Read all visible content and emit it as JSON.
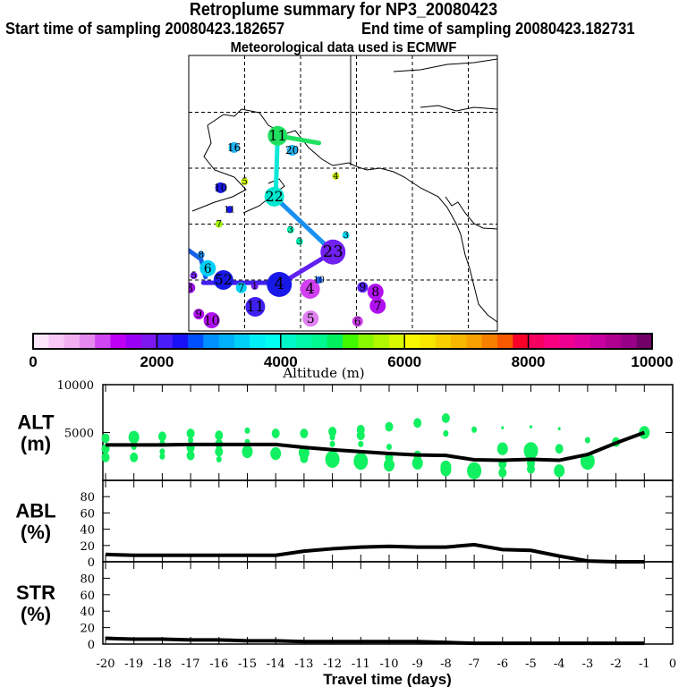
{
  "header": {
    "title": "Retroplume summary for NP3_20080423",
    "start": "Start time of sampling 20080423.182657",
    "end": "End time of sampling 20080423.182731",
    "met": "Meteorological data used is ECMWF"
  },
  "map": {
    "lon_range": [
      -170,
      -115
    ],
    "lat_range": [
      31,
      80
    ],
    "grid_lons": [
      -160,
      -150,
      -140,
      -130,
      -120
    ],
    "grid_lats": [
      70,
      60,
      50,
      40
    ],
    "tracks": [
      {
        "color": "#20e060",
        "pts": [
          [
            -154.1,
            65.8
          ],
          [
            -146.7,
            64.5
          ]
        ]
      },
      {
        "color": "#10e8d8",
        "pts": [
          [
            -154.1,
            65.8
          ],
          [
            -154.4,
            56.5
          ],
          [
            -154.7,
            54.9
          ]
        ]
      },
      {
        "color": "#1890f0",
        "pts": [
          [
            -154.7,
            54.9
          ],
          [
            -144.2,
            45.0
          ]
        ]
      },
      {
        "color": "#6020f0",
        "pts": [
          [
            -144.2,
            45.0
          ],
          [
            -153.8,
            39.2
          ]
        ]
      },
      {
        "color": "#4020f0",
        "pts": [
          [
            -153.8,
            39.5
          ],
          [
            -167.4,
            39.5
          ]
        ]
      },
      {
        "color": "#1860e8",
        "pts": [
          [
            -170,
            45.3
          ],
          [
            -167.8,
            43.7
          ],
          [
            -167,
            40.5
          ]
        ]
      }
    ],
    "points": [
      {
        "label": "11",
        "lon": -154.1,
        "lat": 65.8,
        "color": "#20e060",
        "size": 4
      },
      {
        "label": "20",
        "lon": -151.5,
        "lat": 63.2,
        "color": "#20b0f0",
        "size": 2
      },
      {
        "label": "16",
        "lon": -161.9,
        "lat": 63.7,
        "color": "#20b0f0",
        "size": 2
      },
      {
        "label": "4",
        "lon": -143.7,
        "lat": 58.6,
        "color": "#c8f000",
        "size": 1
      },
      {
        "label": "5",
        "lon": -160.0,
        "lat": 57.6,
        "color": "#c8f000",
        "size": 1
      },
      {
        "label": "10",
        "lon": -164.3,
        "lat": 56.5,
        "color": "#1818e8",
        "size": 2
      },
      {
        "label": "11",
        "lon": -162.7,
        "lat": 52.6,
        "color": "#1818e8",
        "size": 1
      },
      {
        "label": "7",
        "lon": -164.6,
        "lat": 50.0,
        "color": "#a0f000",
        "size": 1
      },
      {
        "label": "22",
        "lon": -154.7,
        "lat": 54.9,
        "color": "#00e8d0",
        "size": 4
      },
      {
        "label": "3",
        "lon": -151.8,
        "lat": 49.0,
        "color": "#00f0b0",
        "size": 1
      },
      {
        "label": "3",
        "lon": -150.2,
        "lat": 46.9,
        "color": "#00f0b0",
        "size": 1
      },
      {
        "label": "3",
        "lon": -141.9,
        "lat": 48.0,
        "color": "#00d8f0",
        "size": 1
      },
      {
        "label": "23",
        "lon": -144.2,
        "lat": 45.0,
        "color": "#7020f0",
        "size": 5
      },
      {
        "label": "8",
        "lon": -167.8,
        "lat": 44.5,
        "color": "#1890f0",
        "size": 1
      },
      {
        "label": "6",
        "lon": -166.6,
        "lat": 42.1,
        "color": "#00d0f8",
        "size": 3
      },
      {
        "label": "5",
        "lon": -169.1,
        "lat": 40.8,
        "color": "#7020f0",
        "size": 1
      },
      {
        "label": "52",
        "lon": -163.8,
        "lat": 40.0,
        "color": "#1818e8",
        "size": 4
      },
      {
        "label": "3",
        "lon": -169.8,
        "lat": 38.6,
        "color": "#a010f0",
        "size": 2
      },
      {
        "label": "7",
        "lon": -160.6,
        "lat": 38.6,
        "color": "#00d0f8",
        "size": 2
      },
      {
        "label": "1",
        "lon": -158.2,
        "lat": 38.9,
        "color": "#7020f0",
        "size": 1
      },
      {
        "label": "4",
        "lon": -153.8,
        "lat": 39.2,
        "color": "#1818e8",
        "size": 5
      },
      {
        "label": "4",
        "lon": -148.3,
        "lat": 38.4,
        "color": "#d040f0",
        "size": 4
      },
      {
        "label": "10",
        "lon": -146.7,
        "lat": 40.0,
        "color": "#1860f0",
        "size": 1
      },
      {
        "label": "9",
        "lon": -138.9,
        "lat": 38.7,
        "color": "#5020f0",
        "size": 2
      },
      {
        "label": "8",
        "lon": -136.6,
        "lat": 37.9,
        "color": "#b010f0",
        "size": 3
      },
      {
        "label": "7",
        "lon": -136.2,
        "lat": 35.4,
        "color": "#b010f0",
        "size": 3
      },
      {
        "label": "11",
        "lon": -158.1,
        "lat": 35.2,
        "color": "#4020f0",
        "size": 4
      },
      {
        "label": "9",
        "lon": -168.2,
        "lat": 33.9,
        "color": "#b010f0",
        "size": 2
      },
      {
        "label": "10",
        "lon": -165.9,
        "lat": 32.8,
        "color": "#b010f0",
        "size": 3
      },
      {
        "label": "5",
        "lon": -148.2,
        "lat": 33.1,
        "color": "#e080f0",
        "size": 3
      },
      {
        "label": "6",
        "lon": -139.8,
        "lat": 32.6,
        "color": "#d040f0",
        "size": 2
      }
    ]
  },
  "colorbar": {
    "label": "Altitude (m)",
    "ticks": [
      "0",
      "2000",
      "4000",
      "6000",
      "8000",
      "10000"
    ],
    "colors": [
      "#fde6fb",
      "#f9c8f7",
      "#f1aef0",
      "#e589ee",
      "#d146f3",
      "#bd00f5",
      "#9a00f5",
      "#7b18f0",
      "#4a1cf8",
      "#1a10f5",
      "#0050ff",
      "#0090ff",
      "#00b0f8",
      "#00d0f8",
      "#00f0f8",
      "#00fff0",
      "#00f8c8",
      "#00f8a8",
      "#00f890",
      "#00f060",
      "#40f800",
      "#88f800",
      "#b0f800",
      "#d8f800",
      "#f8f800",
      "#f8e800",
      "#f8d000",
      "#f8b800",
      "#f8a000",
      "#f88000",
      "#f85800",
      "#f80028",
      "#f80060",
      "#f80080",
      "#f00090",
      "#e000a0",
      "#c800a0",
      "#b00090",
      "#980088",
      "#700068"
    ]
  },
  "chart_data": [
    {
      "type": "line",
      "name": "ALT",
      "ylabel": "ALT (m)",
      "ylim": [
        0,
        10000
      ],
      "yticks": [
        "10000",
        "5000"
      ],
      "x": [
        -20,
        -19,
        -18,
        -17,
        -16,
        -15,
        -14,
        -13,
        -12,
        -11,
        -10,
        -9,
        -8,
        -7,
        -6,
        -5,
        -4,
        -3,
        -2,
        -1
      ],
      "values": [
        3700,
        3700,
        3700,
        3750,
        3750,
        3750,
        3750,
        3450,
        3200,
        3000,
        2800,
        2650,
        2600,
        2150,
        2100,
        2200,
        2100,
        2700,
        3900,
        5000
      ],
      "dots_color": "#10f060",
      "dots": [
        [
          -20,
          4400,
          2
        ],
        [
          -20,
          3300,
          2
        ],
        [
          -20,
          2400,
          2
        ],
        [
          -19,
          4500,
          3
        ],
        [
          -19,
          3500,
          1
        ],
        [
          -19,
          2400,
          2
        ],
        [
          -18,
          4600,
          2
        ],
        [
          -18,
          3900,
          1
        ],
        [
          -18,
          3000,
          1
        ],
        [
          -18,
          2500,
          1
        ],
        [
          -17,
          4900,
          2
        ],
        [
          -17,
          4200,
          1
        ],
        [
          -17,
          3400,
          2
        ],
        [
          -17,
          2600,
          2
        ],
        [
          -16,
          4700,
          2
        ],
        [
          -16,
          3800,
          2
        ],
        [
          -16,
          3000,
          2
        ],
        [
          -16,
          2200,
          1
        ],
        [
          -15,
          5200,
          1
        ],
        [
          -15,
          4000,
          1
        ],
        [
          -15,
          3000,
          3
        ],
        [
          -14,
          4900,
          2
        ],
        [
          -14,
          2800,
          3
        ],
        [
          -13,
          4900,
          2
        ],
        [
          -13,
          2900,
          3
        ],
        [
          -13,
          2300,
          2
        ],
        [
          -12,
          5100,
          2
        ],
        [
          -12,
          4500,
          1
        ],
        [
          -12,
          3800,
          1
        ],
        [
          -12,
          2200,
          4
        ],
        [
          -11,
          5300,
          2
        ],
        [
          -11,
          4700,
          2
        ],
        [
          -11,
          3800,
          1
        ],
        [
          -11,
          2000,
          4
        ],
        [
          -10,
          5600,
          2
        ],
        [
          -10,
          3500,
          1
        ],
        [
          -10,
          2400,
          2
        ],
        [
          -10,
          1600,
          3
        ],
        [
          -9,
          6000,
          2
        ],
        [
          -9,
          2600,
          2
        ],
        [
          -9,
          1800,
          3
        ],
        [
          -8,
          6500,
          2
        ],
        [
          -8,
          4900,
          1
        ],
        [
          -8,
          1400,
          3
        ],
        [
          -8,
          1100,
          3
        ],
        [
          -7,
          5300,
          1
        ],
        [
          -7,
          1000,
          4
        ],
        [
          -6,
          5500,
          0
        ],
        [
          -6,
          3300,
          3
        ],
        [
          -6,
          1700,
          2
        ],
        [
          -6,
          800,
          2
        ],
        [
          -5,
          5600,
          0
        ],
        [
          -5,
          3100,
          4
        ],
        [
          -5,
          1800,
          2
        ],
        [
          -5,
          1200,
          2
        ],
        [
          -4,
          5400,
          0
        ],
        [
          -4,
          3300,
          2
        ],
        [
          -4,
          1000,
          3
        ],
        [
          -3,
          4200,
          1
        ],
        [
          -3,
          2000,
          4
        ],
        [
          -2,
          4000,
          2
        ],
        [
          -1,
          5000,
          3
        ]
      ]
    },
    {
      "type": "line",
      "name": "ABL",
      "ylabel": "ABL (%)",
      "ylim": [
        0,
        100
      ],
      "yticks": [
        "80",
        "60",
        "40",
        "20",
        "0"
      ],
      "x": [
        -20,
        -19,
        -18,
        -17,
        -16,
        -15,
        -14,
        -13,
        -12,
        -11,
        -10,
        -9,
        -8,
        -7,
        -6,
        -5,
        -4,
        -3,
        -2,
        -1
      ],
      "values": [
        9,
        8,
        8,
        8,
        8,
        8,
        8,
        13,
        16,
        18,
        19,
        18,
        18,
        21,
        15,
        14,
        7,
        1,
        0,
        0
      ]
    },
    {
      "type": "line",
      "name": "STR",
      "ylabel": "STR (%)",
      "ylim": [
        0,
        100
      ],
      "yticks": [
        "80",
        "60",
        "40",
        "20",
        "0"
      ],
      "x": [
        -20,
        -19,
        -18,
        -17,
        -16,
        -15,
        -14,
        -13,
        -12,
        -11,
        -10,
        -9,
        -8,
        -7,
        -6,
        -5,
        -4,
        -3,
        -2,
        -1
      ],
      "values": [
        7,
        6,
        6,
        5,
        5,
        4,
        4,
        3,
        3,
        3,
        3,
        3,
        2,
        1,
        1,
        1,
        1,
        1,
        1,
        1
      ],
      "xlabel": "Travel time (days)",
      "xticks": [
        "-20",
        "-19",
        "-18",
        "-17",
        "-16",
        "-15",
        "-14",
        "-13",
        "-12",
        "-11",
        "-10",
        "-9",
        "-8",
        "-7",
        "-6",
        "-5",
        "-4",
        "-3",
        "-2",
        "-1",
        "0"
      ]
    }
  ]
}
